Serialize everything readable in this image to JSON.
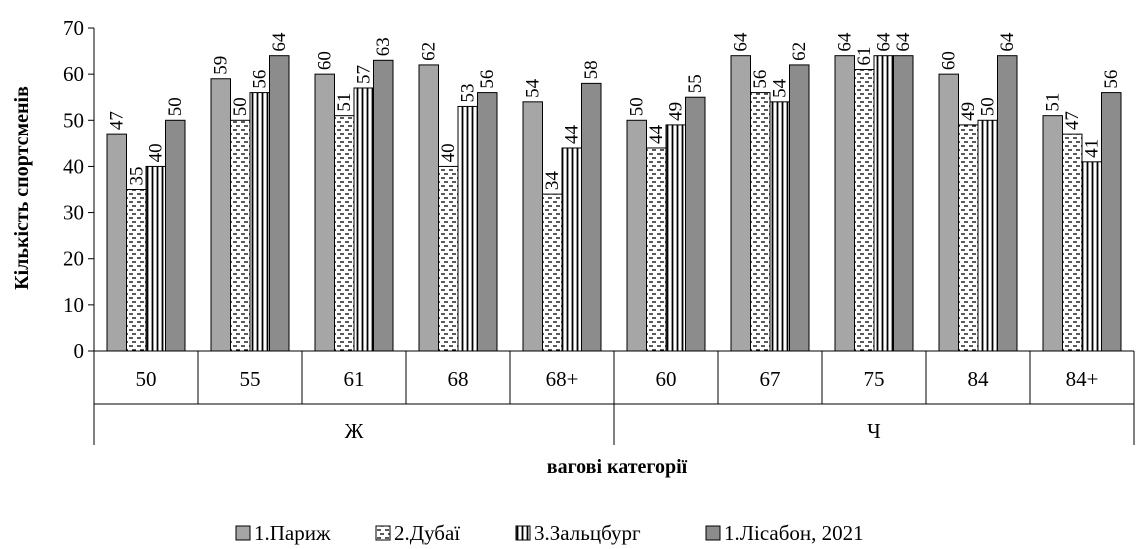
{
  "chart_data": {
    "type": "bar",
    "ylabel": "Кількість спортсменів",
    "xlabel": "вагові категорії",
    "ylim": [
      0,
      70
    ],
    "yticks": [
      0,
      10,
      20,
      30,
      40,
      50,
      60,
      70
    ],
    "grid": false,
    "legend_position": "bottom",
    "groups": [
      {
        "label": "Ж",
        "categories": [
          "50",
          "55",
          "61",
          "68",
          "68+"
        ]
      },
      {
        "label": "Ч",
        "categories": [
          "60",
          "67",
          "75",
          "84",
          "84+"
        ]
      }
    ],
    "categories": [
      "50",
      "55",
      "61",
      "68",
      "68+",
      "60",
      "67",
      "75",
      "84",
      "84+"
    ],
    "series": [
      {
        "name": "1.Париж",
        "pattern": "solid-light",
        "color": "#a6a6a6",
        "values": [
          47,
          59,
          60,
          62,
          54,
          50,
          64,
          64,
          60,
          51
        ]
      },
      {
        "name": "2.Дубаї",
        "pattern": "dashed",
        "color": "#ffffff",
        "values": [
          35,
          50,
          51,
          40,
          34,
          44,
          56,
          61,
          49,
          47
        ]
      },
      {
        "name": "3.Зальцбург",
        "pattern": "vertical",
        "color": "#ffffff",
        "values": [
          40,
          56,
          57,
          53,
          44,
          49,
          54,
          64,
          50,
          41
        ]
      },
      {
        "name": "1.Лісабон, 2021",
        "pattern": "solid-dark",
        "color": "#8c8c8c",
        "values": [
          50,
          64,
          63,
          56,
          58,
          55,
          62,
          64,
          64,
          56
        ]
      }
    ]
  }
}
